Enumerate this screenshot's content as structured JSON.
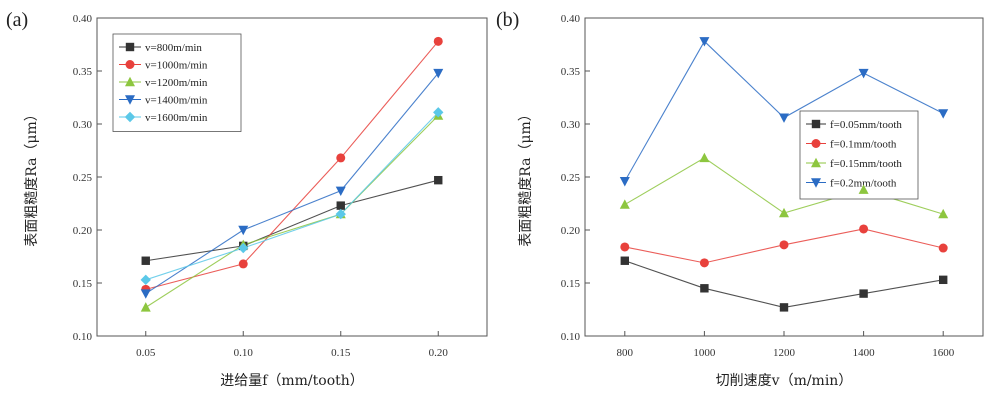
{
  "chart_data": [
    {
      "type": "line",
      "panel_label": "(a)",
      "xlabel": "进给量f（mm/tooth）",
      "ylabel": "表面粗糙度Ra（μm）",
      "x": [
        0.05,
        0.1,
        0.15,
        0.2
      ],
      "x_tick_labels": [
        "0.05",
        "0.10",
        "0.15",
        "0.20"
      ],
      "xlim": [
        0.025,
        0.225
      ],
      "ylim": [
        0.1,
        0.4
      ],
      "y_ticks": [
        "0.10",
        "0.15",
        "0.20",
        "0.25",
        "0.30",
        "0.35",
        "0.40"
      ],
      "legend_position": "top-left",
      "series": [
        {
          "name": "v=800m/min",
          "color": "#333333",
          "marker": "square",
          "values": [
            0.171,
            0.185,
            0.223,
            0.247
          ]
        },
        {
          "name": "v=1000m/min",
          "color": "#e8413c",
          "marker": "circle",
          "values": [
            0.144,
            0.168,
            0.268,
            0.378
          ]
        },
        {
          "name": "v=1200m/min",
          "color": "#8dc63f",
          "marker": "triangle-up",
          "values": [
            0.127,
            0.186,
            0.215,
            0.308
          ]
        },
        {
          "name": "v=1400m/min",
          "color": "#2b6cc4",
          "marker": "triangle-down",
          "values": [
            0.14,
            0.2,
            0.237,
            0.348
          ]
        },
        {
          "name": "v=1600m/min",
          "color": "#5bc8e8",
          "marker": "diamond",
          "values": [
            0.153,
            0.183,
            0.215,
            0.311
          ]
        }
      ]
    },
    {
      "type": "line",
      "panel_label": "(b)",
      "xlabel": "切削速度v（m/min）",
      "ylabel": "表面粗糙度Ra（μm）",
      "x": [
        800,
        1000,
        1200,
        1400,
        1600
      ],
      "x_tick_labels": [
        "800",
        "1000",
        "1200",
        "1400",
        "1600"
      ],
      "xlim": [
        700,
        1700
      ],
      "ylim": [
        0.1,
        0.4
      ],
      "y_ticks": [
        "0.10",
        "0.15",
        "0.20",
        "0.25",
        "0.30",
        "0.35",
        "0.40"
      ],
      "legend_position": "center-right",
      "series": [
        {
          "name": "f=0.05mm/tooth",
          "color": "#333333",
          "marker": "square",
          "values": [
            0.171,
            0.145,
            0.127,
            0.14,
            0.153
          ]
        },
        {
          "name": "f=0.1mm/tooth",
          "color": "#e8413c",
          "marker": "circle",
          "values": [
            0.184,
            0.169,
            0.186,
            0.201,
            0.183
          ]
        },
        {
          "name": "f=0.15mm/tooth",
          "color": "#8dc63f",
          "marker": "triangle-up",
          "values": [
            0.224,
            0.268,
            0.216,
            0.238,
            0.215
          ]
        },
        {
          "name": "f=0.2mm/tooth",
          "color": "#2b6cc4",
          "marker": "triangle-down",
          "values": [
            0.246,
            0.378,
            0.306,
            0.348,
            0.31
          ]
        }
      ]
    }
  ]
}
